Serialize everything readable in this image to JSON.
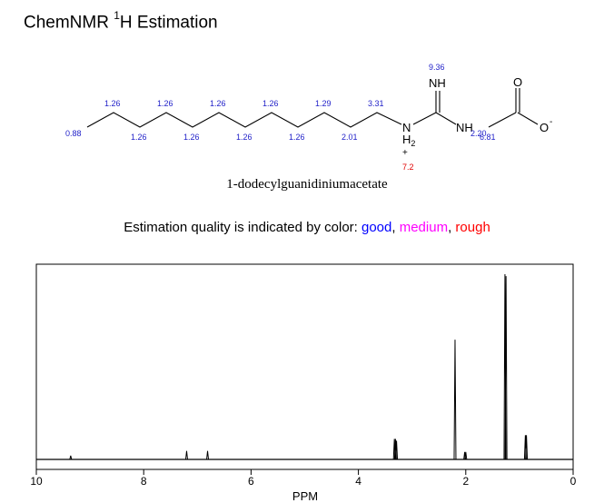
{
  "header": {
    "title_main": "ChemNMR ",
    "title_sup": "1",
    "title_rest": "H Estimation"
  },
  "compound_name": "1-dodecylguanidiniumacetate",
  "molecule": {
    "atoms": {
      "NH_top": "NH",
      "N": "N",
      "H2": "H",
      "H2_sub": "2",
      "plus": "+",
      "NH_right": "NH",
      "O_top": "O",
      "O_minus": "O",
      "minus": "-"
    },
    "shifts": {
      "c1": "0.88",
      "c2": "1.26",
      "c3": "1.26",
      "c4": "1.26",
      "c5": "1.26",
      "c6": "1.26",
      "c7": "1.26",
      "c8": "1.26",
      "c9": "1.26",
      "c10": "1.29",
      "c11": "2.01",
      "c12": "3.31",
      "nh_top": "9.36",
      "nh2": "7.2",
      "nh_right": "2.20",
      "ch3_acetate": "6.81"
    },
    "quality_colors": {
      "good": "#1e1ec8",
      "rough": "#e00000"
    }
  },
  "legend": {
    "prefix": "Estimation quality is indicated by color: ",
    "good": "good",
    "sep1": ", ",
    "medium": "medium",
    "sep2": ", ",
    "rough": "rough",
    "colors": {
      "good": "#0000ff",
      "medium": "#ff00ff",
      "rough": "#ff0000"
    }
  },
  "chart_data": {
    "type": "line",
    "xlabel": "PPM",
    "xlim": [
      10,
      0
    ],
    "x_ticks": [
      10,
      8,
      6,
      4,
      2,
      0
    ],
    "peaks": [
      {
        "ppm": 9.36,
        "height": 0.02
      },
      {
        "ppm": 7.2,
        "height": 0.045
      },
      {
        "ppm": 6.81,
        "height": 0.045
      },
      {
        "ppm": 3.33,
        "height": 0.11
      },
      {
        "ppm": 3.31,
        "height": 0.11
      },
      {
        "ppm": 3.29,
        "height": 0.1
      },
      {
        "ppm": 2.2,
        "height": 0.64
      },
      {
        "ppm": 2.02,
        "height": 0.04
      },
      {
        "ppm": 2.0,
        "height": 0.04
      },
      {
        "ppm": 1.27,
        "height": 0.99
      },
      {
        "ppm": 1.25,
        "height": 0.98
      },
      {
        "ppm": 0.89,
        "height": 0.13
      },
      {
        "ppm": 0.87,
        "height": 0.13
      }
    ]
  }
}
